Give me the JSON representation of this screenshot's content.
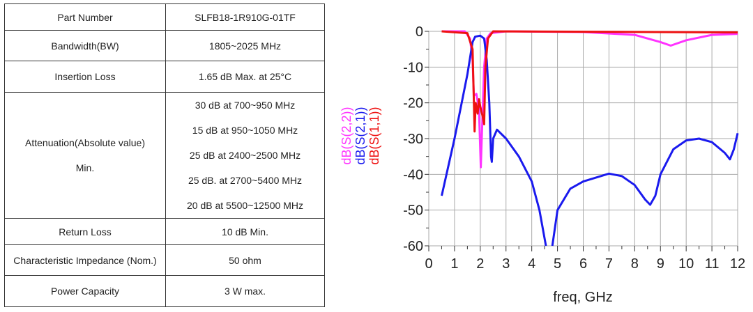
{
  "spec_table": {
    "rows": [
      {
        "label": "Part Number",
        "value": [
          "SLFB18-1R910G-01TF"
        ]
      },
      {
        "label": "Bandwidth(BW)",
        "value": [
          "1805~2025 MHz"
        ]
      },
      {
        "label": "Insertion Loss",
        "value": [
          "1.65 dB Max. at 25°C"
        ]
      },
      {
        "label": "Attenuation(Absolute value)",
        "label2": "Min.",
        "value": [
          "30 dB at 700~950 MHz",
          "15 dB at 950~1050 MHz",
          "25 dB at 2400~2500 MHz",
          "25 dB. at 2700~5400 MHz",
          "20 dB at 5500~12500 MHz"
        ]
      },
      {
        "label": "Return Loss",
        "value": [
          "10 dB Min."
        ]
      },
      {
        "label": "Characteristic Impedance (Nom.)",
        "value": [
          "50 ohm"
        ]
      },
      {
        "label": "Power Capacity",
        "value": [
          "3 W max."
        ]
      }
    ]
  },
  "chart_data": {
    "type": "line",
    "title": "",
    "xlabel": "freq, GHz",
    "ylabel": "",
    "xlim": [
      0,
      12
    ],
    "ylim": [
      -60,
      0
    ],
    "grid": true,
    "xticks": [
      "0",
      "1",
      "2",
      "3",
      "4",
      "5",
      "6",
      "7",
      "8",
      "9",
      "10",
      "11",
      "12"
    ],
    "yticks": [
      "0",
      "-10",
      "-20",
      "-30",
      "-40",
      "-50",
      "-60"
    ],
    "legend_placement": "left-rotated",
    "series": [
      {
        "name": "dB(S(2,2))",
        "color": "#ff33ff",
        "x": [
          0.5,
          1.4,
          1.6,
          1.7,
          1.75,
          1.85,
          1.95,
          2.02,
          2.08,
          2.15,
          2.25,
          2.4,
          3,
          6,
          8,
          9,
          9.4,
          10,
          11,
          12
        ],
        "y": [
          0,
          0,
          -2,
          -8,
          -18,
          -17.5,
          -22,
          -38,
          -25,
          -10,
          -2,
          -0.5,
          0,
          -0.2,
          -1,
          -3,
          -4,
          -2.5,
          -1,
          -0.7
        ]
      },
      {
        "name": "dB(S(2,1))",
        "color": "#1a1aee",
        "x": [
          0.5,
          1.0,
          1.5,
          1.7,
          1.8,
          2.0,
          2.15,
          2.25,
          2.35,
          2.42,
          2.45,
          2.5,
          2.65,
          3,
          3.5,
          4,
          4.3,
          4.55,
          null,
          4.8,
          5,
          5.5,
          6,
          7,
          7.5,
          8,
          8.4,
          8.6,
          8.8,
          9,
          9.5,
          10,
          10.5,
          11,
          11.5,
          11.7,
          11.85,
          12
        ],
        "y": [
          -46,
          -30,
          -12,
          -3,
          -1.5,
          -1.2,
          -2,
          -8,
          -20,
          -35,
          -36.5,
          -30,
          -27.5,
          -30,
          -35,
          -42,
          -50,
          -60,
          null,
          -60,
          -50,
          -44,
          -42,
          -39.8,
          -40.5,
          -43,
          -47,
          -48.5,
          -46,
          -40,
          -33,
          -30.5,
          -30,
          -31,
          -34,
          -35.8,
          -33,
          -28.5
        ]
      },
      {
        "name": "dB(S(1,1))",
        "color": "#ee1111",
        "x": [
          0.5,
          1.5,
          1.7,
          1.78,
          1.82,
          1.9,
          1.95,
          2.0,
          2.1,
          2.15,
          2.2,
          2.3,
          2.5,
          12
        ],
        "y": [
          0,
          -0.5,
          -5,
          -28,
          -20,
          -23,
          -19,
          -21,
          -24,
          -26,
          -10,
          -2,
          0,
          -0.3
        ]
      }
    ]
  }
}
